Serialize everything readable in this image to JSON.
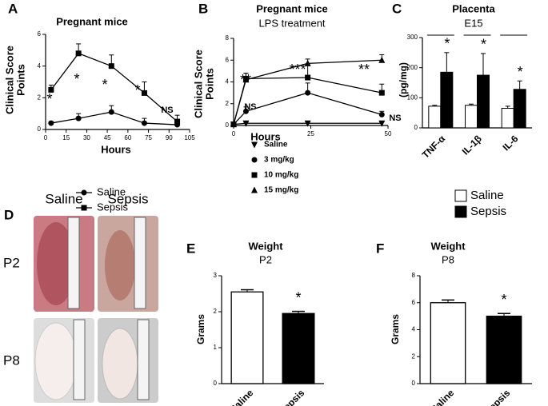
{
  "chart_data": [
    {
      "type": "line",
      "label": "A",
      "title": "Pregnant mice",
      "ylabel": [
        "Clinical Score",
        "Points"
      ],
      "xlabel": "Hours",
      "x": [
        4,
        24,
        48,
        72,
        96
      ],
      "xlim": [
        0,
        105
      ],
      "xticks": [
        0,
        15,
        30,
        45,
        60,
        75,
        90,
        105
      ],
      "ylim": [
        0,
        6
      ],
      "yticks": [
        0,
        2,
        4,
        6
      ],
      "series": [
        {
          "name": "Saline",
          "color": "#000000",
          "marker": "circle",
          "values": [
            0.4,
            0.7,
            1.1,
            0.4,
            0.3
          ],
          "errors": [
            0.1,
            0.3,
            0.4,
            0.3,
            0.2
          ]
        },
        {
          "name": "Sepsis",
          "color": "#000000",
          "marker": "square",
          "values": [
            2.5,
            4.8,
            4.0,
            2.3,
            0.5
          ],
          "errors": [
            0.3,
            0.6,
            0.7,
            0.7,
            0.4
          ]
        }
      ],
      "annotations": [
        "*",
        "*",
        "*",
        "*",
        "NS"
      ]
    },
    {
      "type": "line",
      "label": "B",
      "title": "Pregnant mice",
      "subtitle": "LPS treatment",
      "ylabel": [
        "Clinical Score",
        "Points"
      ],
      "xlabel": "Hours",
      "x": [
        0,
        4,
        24,
        48
      ],
      "xlim": [
        0,
        50
      ],
      "xticks": [
        0,
        25,
        50
      ],
      "ylim": [
        0,
        8
      ],
      "yticks": [
        0,
        2,
        4,
        6,
        8
      ],
      "series": [
        {
          "name": "Saline",
          "color": "#000000",
          "marker": "triangle-down",
          "values": [
            0.1,
            0.2,
            0.2,
            0.2
          ],
          "errors": [
            0,
            0.1,
            0.1,
            0.1
          ]
        },
        {
          "name": "3 mg/kg",
          "color": "#000000",
          "marker": "circle",
          "values": [
            0.1,
            1.3,
            3.0,
            1.0
          ],
          "errors": [
            0,
            0.4,
            0.9,
            0.3
          ]
        },
        {
          "name": "10 mg/kg",
          "color": "#000000",
          "marker": "square",
          "values": [
            0.1,
            4.3,
            4.4,
            3.0
          ],
          "errors": [
            0,
            0.5,
            1.2,
            0.8
          ]
        },
        {
          "name": "15 mg/kg",
          "color": "#000000",
          "marker": "triangle-up",
          "values": [
            0.1,
            4.2,
            5.7,
            6.0
          ],
          "errors": [
            0,
            0.6,
            0.4,
            0.5
          ]
        }
      ],
      "annotations": [
        "**",
        "***",
        "**",
        "NS",
        "NS"
      ]
    },
    {
      "type": "grouped-bar",
      "label": "C",
      "title": "Placenta",
      "subtitle": "E15",
      "ylabel": [
        "(pg/mg)"
      ],
      "categories": [
        "TNF-α",
        "IL-1β",
        "IL-6"
      ],
      "ylim": [
        0,
        300
      ],
      "yticks": [
        0,
        100,
        200,
        300
      ],
      "series": [
        {
          "name": "Saline",
          "color": "#ffffff",
          "values": [
            72,
            75,
            65
          ],
          "errors": [
            3,
            4,
            7
          ]
        },
        {
          "name": "Sepsis",
          "color": "#000000",
          "values": [
            185,
            175,
            128
          ],
          "errors": [
            65,
            72,
            28
          ]
        }
      ],
      "annotations": [
        "*",
        "*",
        "*"
      ]
    },
    {
      "type": "bar",
      "label": "E",
      "title": "Weight",
      "subtitle": "P2",
      "ylabel": [
        "Grams"
      ],
      "categories": [
        "Saline",
        "Sepsis"
      ],
      "values": [
        2.55,
        1.95
      ],
      "errors": [
        0.06,
        0.06
      ],
      "colors": [
        "#ffffff",
        "#000000"
      ],
      "ylim": [
        0,
        3
      ],
      "yticks": [
        0,
        1,
        2,
        3
      ],
      "annotations": [
        "*"
      ]
    },
    {
      "type": "bar",
      "label": "F",
      "title": "Weight",
      "subtitle": "P8",
      "ylabel": [
        "Grams"
      ],
      "categories": [
        "Saline",
        "Sepsis"
      ],
      "values": [
        6.0,
        5.0
      ],
      "errors": [
        0.2,
        0.2
      ],
      "colors": [
        "#ffffff",
        "#000000"
      ],
      "ylim": [
        0,
        8
      ],
      "yticks": [
        0,
        2,
        4,
        6,
        8
      ],
      "annotations": [
        "*"
      ]
    }
  ],
  "photo_panel": {
    "label": "D",
    "columns": [
      "Saline",
      "Sepsis"
    ],
    "rows": [
      "P2",
      "P8"
    ]
  }
}
